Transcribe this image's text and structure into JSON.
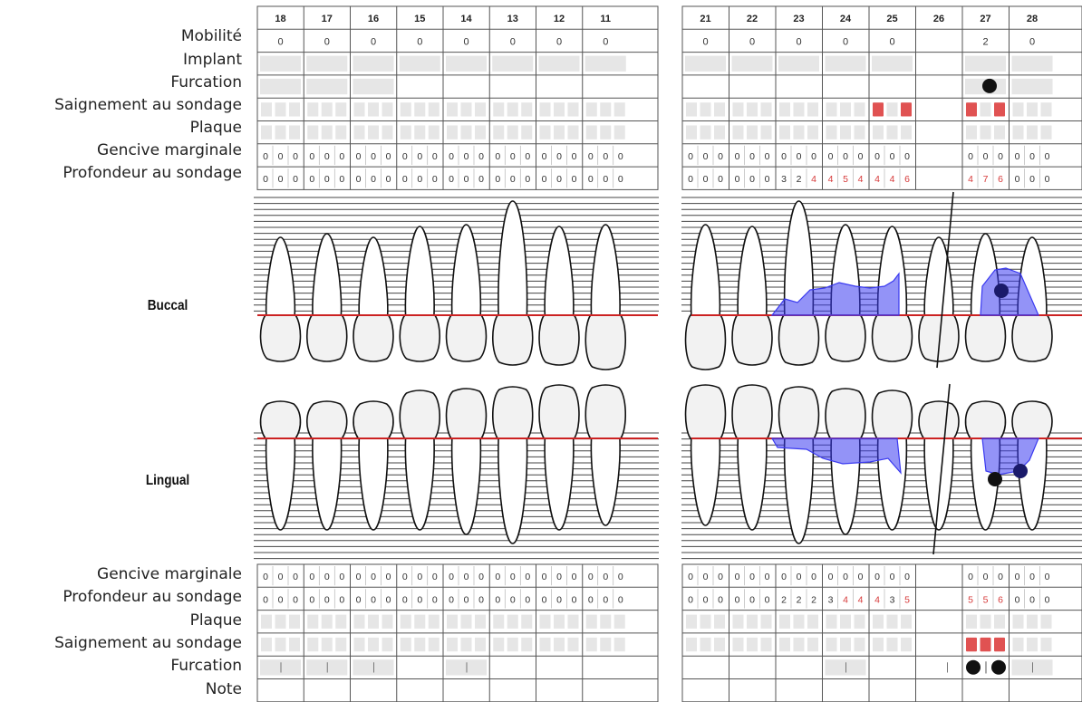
{
  "upper": {
    "teeth_right": [
      "18",
      "17",
      "16",
      "15",
      "14",
      "13",
      "12",
      "11"
    ],
    "teeth_left": [
      "21",
      "22",
      "23",
      "24",
      "25",
      "26",
      "27",
      "28"
    ],
    "labels": {
      "mobility": "Mobilité",
      "implant": "Implant",
      "furcation": "Furcation",
      "bleeding": "Saignement au sondage",
      "plaque": "Plaque",
      "gingival_margin": "Gencive marginale",
      "probing_depth": "Profondeur au sondage"
    },
    "mobility": [
      "0",
      "0",
      "0",
      "0",
      "0",
      "0",
      "0",
      "0",
      "0",
      "0",
      "0",
      "0",
      "0",
      "",
      "2",
      "0"
    ],
    "gingival_margin": [
      [
        "0",
        "0",
        "0"
      ],
      [
        "0",
        "0",
        "0"
      ],
      [
        "0",
        "0",
        "0"
      ],
      [
        "0",
        "0",
        "0"
      ],
      [
        "0",
        "0",
        "0"
      ],
      [
        "0",
        "0",
        "0"
      ],
      [
        "0",
        "0",
        "0"
      ],
      [
        "0",
        "0",
        "0"
      ],
      [
        "0",
        "0",
        "0"
      ],
      [
        "0",
        "0",
        "0"
      ],
      [
        "0",
        "0",
        "0"
      ],
      [
        "0",
        "0",
        "0"
      ],
      [
        "0",
        "0",
        "0"
      ],
      [
        "",
        "",
        ""
      ],
      [
        "0",
        "0",
        "0"
      ],
      [
        "0",
        "0",
        "0"
      ]
    ],
    "probing_depth": [
      [
        "0",
        "0",
        "0"
      ],
      [
        "0",
        "0",
        "0"
      ],
      [
        "0",
        "0",
        "0"
      ],
      [
        "0",
        "0",
        "0"
      ],
      [
        "0",
        "0",
        "0"
      ],
      [
        "0",
        "0",
        "0"
      ],
      [
        "0",
        "0",
        "0"
      ],
      [
        "0",
        "0",
        "0"
      ],
      [
        "0",
        "0",
        "0"
      ],
      [
        "0",
        "0",
        "0"
      ],
      [
        "3",
        "2",
        "4"
      ],
      [
        "4",
        "5",
        "4"
      ],
      [
        "4",
        "4",
        "6"
      ],
      [
        "",
        "",
        ""
      ],
      [
        "4",
        "7",
        "6"
      ],
      [
        "0",
        "0",
        "0"
      ]
    ],
    "bleeding_sites": [
      [
        12,
        0
      ],
      [
        12,
        2
      ],
      [
        14,
        0
      ],
      [
        14,
        2
      ]
    ],
    "furcation_marks": [
      14
    ]
  },
  "chart": {
    "buccal_label": "Buccal",
    "lingual_label": "Lingual",
    "missing_tooth": "26"
  },
  "lower": {
    "labels": {
      "gingival_margin": "Gencive marginale",
      "probing_depth": "Profondeur au sondage",
      "plaque": "Plaque",
      "bleeding": "Saignement au sondage",
      "furcation": "Furcation",
      "note": "Note"
    },
    "gingival_margin": [
      [
        "0",
        "0",
        "0"
      ],
      [
        "0",
        "0",
        "0"
      ],
      [
        "0",
        "0",
        "0"
      ],
      [
        "0",
        "0",
        "0"
      ],
      [
        "0",
        "0",
        "0"
      ],
      [
        "0",
        "0",
        "0"
      ],
      [
        "0",
        "0",
        "0"
      ],
      [
        "0",
        "0",
        "0"
      ],
      [
        "0",
        "0",
        "0"
      ],
      [
        "0",
        "0",
        "0"
      ],
      [
        "0",
        "0",
        "0"
      ],
      [
        "0",
        "0",
        "0"
      ],
      [
        "0",
        "0",
        "0"
      ],
      [
        "",
        "",
        ""
      ],
      [
        "0",
        "0",
        "0"
      ],
      [
        "0",
        "0",
        "0"
      ]
    ],
    "probing_depth": [
      [
        "0",
        "0",
        "0"
      ],
      [
        "0",
        "0",
        "0"
      ],
      [
        "0",
        "0",
        "0"
      ],
      [
        "0",
        "0",
        "0"
      ],
      [
        "0",
        "0",
        "0"
      ],
      [
        "0",
        "0",
        "0"
      ],
      [
        "0",
        "0",
        "0"
      ],
      [
        "0",
        "0",
        "0"
      ],
      [
        "0",
        "0",
        "0"
      ],
      [
        "0",
        "0",
        "0"
      ],
      [
        "2",
        "2",
        "2"
      ],
      [
        "3",
        "4",
        "4"
      ],
      [
        "4",
        "3",
        "5"
      ],
      [
        "",
        "",
        ""
      ],
      [
        "5",
        "5",
        "6"
      ],
      [
        "0",
        "0",
        "0"
      ]
    ],
    "bleeding_sites": [
      [
        14,
        0
      ],
      [
        14,
        1
      ],
      [
        14,
        2
      ]
    ],
    "furcation_marks": [
      14
    ]
  },
  "colors": {
    "grid": "#555555",
    "cell_gray": "#e6e6e6",
    "bleeding": "#e05252",
    "abnormal_text": "#d63a3a",
    "gum_line": "#cc2222",
    "pocket_fill": "#3a3af0",
    "furcation_dot": "#111111"
  }
}
